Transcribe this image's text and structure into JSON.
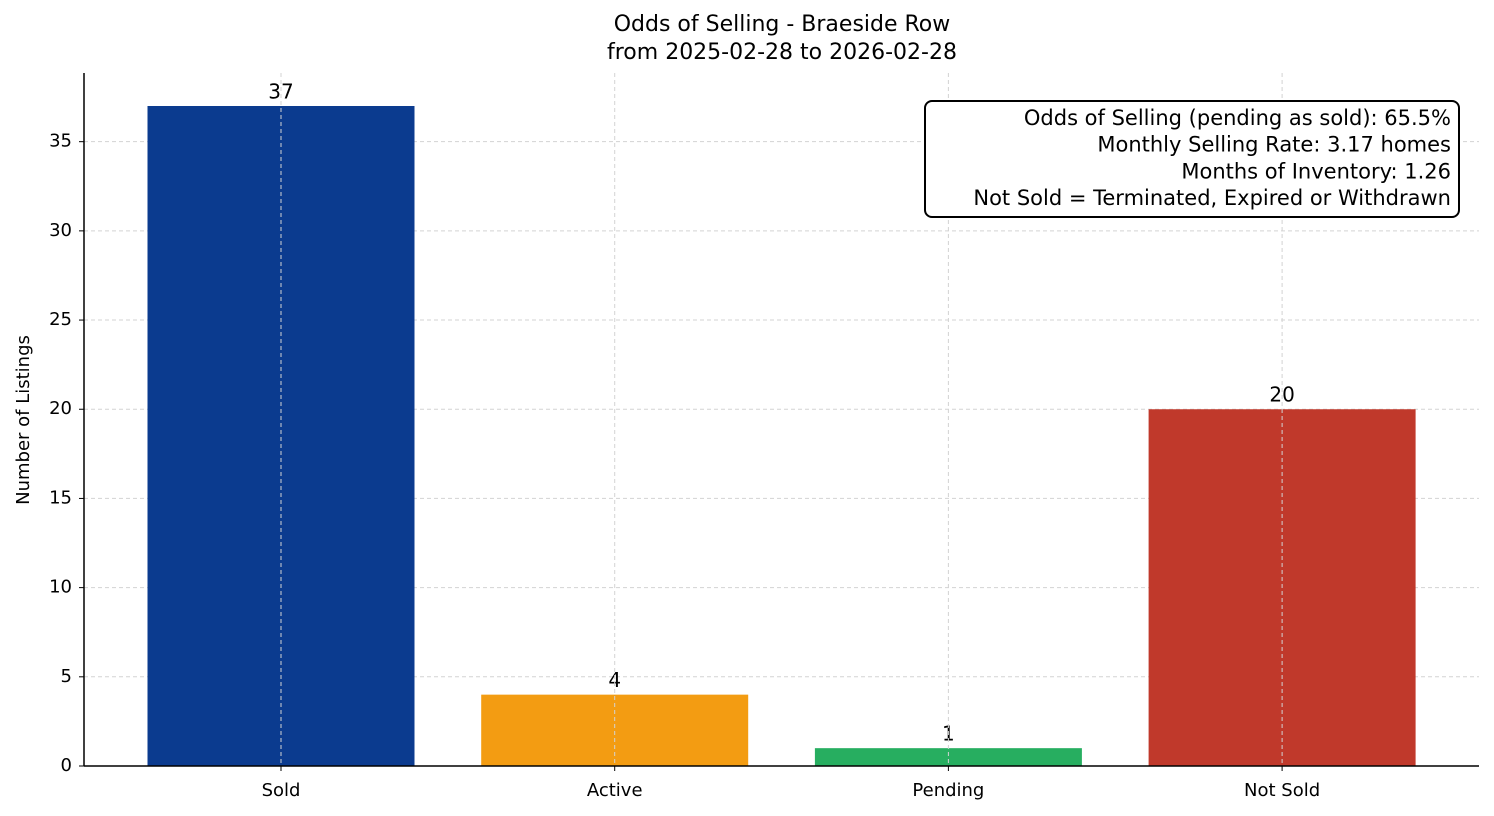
{
  "chart_data": {
    "type": "bar",
    "title": [
      "Odds of Selling - Braeside Row",
      "from 2025-02-28 to 2026-02-28"
    ],
    "y_label": "Number of Listings",
    "categories": [
      "Sold",
      "Active",
      "Pending",
      "Not Sold"
    ],
    "values": [
      37,
      4,
      1,
      20
    ],
    "colors": [
      "#0b3b8f",
      "#f39c12",
      "#27ae60",
      "#c0392b"
    ],
    "ylim": [
      0,
      38.85
    ],
    "yticks": [
      0,
      5,
      10,
      15,
      20,
      25,
      30,
      35
    ],
    "grid": true,
    "annotation": [
      "Odds of Selling (pending as sold): 65.5%",
      "Monthly Selling Rate: 3.17 homes",
      "Months of Inventory: 1.26",
      "Not Sold = Terminated, Expired or Withdrawn"
    ]
  }
}
